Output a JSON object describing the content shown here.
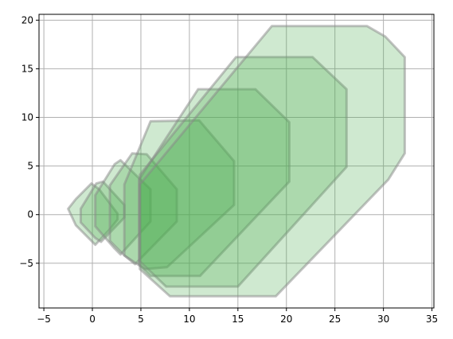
{
  "chart_data": {
    "type": "area",
    "title": "",
    "xlabel": "",
    "ylabel": "",
    "xlim": [
      -5.5,
      35.2
    ],
    "ylim": [
      -9.6,
      20.6
    ],
    "x_ticks": [
      -5,
      0,
      5,
      10,
      15,
      20,
      25,
      30,
      35
    ],
    "y_ticks": [
      -5,
      0,
      5,
      10,
      15,
      20
    ],
    "x_tick_labels": [
      "−5",
      "0",
      "5",
      "10",
      "15",
      "20",
      "25",
      "30",
      "35"
    ],
    "y_tick_labels": [
      "−5",
      "0",
      "5",
      "10",
      "15",
      "20"
    ],
    "grid": true,
    "legend": "none",
    "colors": {
      "fill": "#4caf50",
      "fill_opacity": 0.27,
      "stroke": "#888888",
      "stroke_opacity": 0.5,
      "grid": "#b0b0b0",
      "axes": "#000000"
    },
    "series": [
      {
        "points": [
          [
            -2.5,
            0.6
          ],
          [
            -1.7,
            1.6
          ],
          [
            -0.1,
            3.2
          ],
          [
            0.7,
            2.6
          ],
          [
            2.6,
            0.1
          ],
          [
            2.6,
            -0.5
          ],
          [
            1.8,
            -1.5
          ],
          [
            0.3,
            -3.1
          ],
          [
            -0.6,
            -2.2
          ],
          [
            -1.7,
            -1.1
          ]
        ]
      },
      {
        "points": [
          [
            -1.2,
            0.6
          ],
          [
            -1.2,
            -0.8
          ],
          [
            0.3,
            -2.4
          ],
          [
            0.9,
            -2.8
          ],
          [
            3.3,
            -0.3
          ],
          [
            3.3,
            1.0
          ],
          [
            1.1,
            3.4
          ],
          [
            0.4,
            3.2
          ]
        ]
      },
      {
        "points": [
          [
            0.3,
            2.0
          ],
          [
            0.3,
            -1.2
          ],
          [
            2.3,
            -3.5
          ],
          [
            2.9,
            -4.1
          ],
          [
            6.0,
            -0.7
          ],
          [
            6.0,
            2.6
          ],
          [
            2.9,
            5.6
          ],
          [
            2.3,
            5.2
          ]
        ]
      },
      {
        "points": [
          [
            1.8,
            3.0
          ],
          [
            1.8,
            -2.7
          ],
          [
            3.3,
            -4.2
          ],
          [
            4.4,
            -5.1
          ],
          [
            8.7,
            -0.7
          ],
          [
            8.7,
            2.6
          ],
          [
            5.6,
            6.2
          ],
          [
            4.1,
            6.3
          ]
        ]
      },
      {
        "points": [
          [
            3.3,
            3.1
          ],
          [
            3.3,
            -4.2
          ],
          [
            5.4,
            -5.6
          ],
          [
            7.7,
            -5.4
          ],
          [
            14.6,
            1.0
          ],
          [
            14.6,
            5.5
          ],
          [
            11.0,
            9.7
          ],
          [
            6.0,
            9.6
          ]
        ]
      },
      {
        "points": [
          [
            4.8,
            3.6
          ],
          [
            4.8,
            -5.1
          ],
          [
            6.0,
            -6.3
          ],
          [
            11.1,
            -6.3
          ],
          [
            20.3,
            3.4
          ],
          [
            20.3,
            9.5
          ],
          [
            16.8,
            12.9
          ],
          [
            10.9,
            12.9
          ]
        ]
      },
      {
        "points": [
          [
            4.9,
            4.1
          ],
          [
            4.9,
            -4.8
          ],
          [
            7.6,
            -7.4
          ],
          [
            15.0,
            -7.4
          ],
          [
            26.2,
            4.9
          ],
          [
            26.2,
            12.9
          ],
          [
            22.7,
            16.2
          ],
          [
            14.8,
            16.2
          ]
        ]
      },
      {
        "points": [
          [
            4.9,
            3.1
          ],
          [
            4.9,
            -5.6
          ],
          [
            8.0,
            -8.4
          ],
          [
            18.9,
            -8.4
          ],
          [
            30.5,
            3.6
          ],
          [
            32.2,
            6.3
          ],
          [
            32.2,
            16.2
          ],
          [
            30.2,
            18.3
          ],
          [
            28.3,
            19.4
          ],
          [
            18.5,
            19.4
          ]
        ]
      }
    ]
  }
}
